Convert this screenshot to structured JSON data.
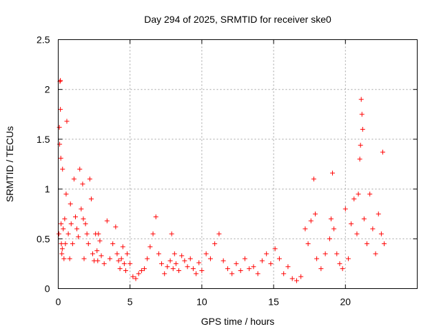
{
  "chart_data": {
    "type": "scatter",
    "title": "Day 294 of 2025, SRMTID for receiver ske0",
    "xlabel": "GPS time / hours",
    "ylabel": "SRMTID / TECUs",
    "xlim": [
      0,
      25
    ],
    "ylim": [
      0,
      2.5
    ],
    "x_ticks": [
      0,
      5,
      10,
      15,
      20
    ],
    "x_tick_labels": [
      "0",
      "5",
      "10",
      "15",
      "20"
    ],
    "y_ticks": [
      0,
      0.5,
      1,
      1.5,
      2,
      2.5
    ],
    "y_tick_labels": [
      "0",
      "0.5",
      "1",
      "1.5",
      "2",
      "2.5"
    ],
    "grid": true,
    "marker": "+",
    "color": "#ff0000",
    "series": [
      {
        "name": "SRMTID",
        "x": [
          0.05,
          0.08,
          0.1,
          0.12,
          0.15,
          0.15,
          0.18,
          0.2,
          0.22,
          0.25,
          0.28,
          0.3,
          0.35,
          0.4,
          0.45,
          0.5,
          0.55,
          0.6,
          0.7,
          0.8,
          0.85,
          0.9,
          1.0,
          1.1,
          1.2,
          1.3,
          1.4,
          1.5,
          1.6,
          1.7,
          1.75,
          1.8,
          1.9,
          2.0,
          2.1,
          2.2,
          2.3,
          2.4,
          2.5,
          2.6,
          2.7,
          2.75,
          2.8,
          2.9,
          3.0,
          3.2,
          3.4,
          3.6,
          3.8,
          4.0,
          4.1,
          4.2,
          4.3,
          4.4,
          4.5,
          4.6,
          4.7,
          4.8,
          5.0,
          5.2,
          5.4,
          5.6,
          5.8,
          6.0,
          6.2,
          6.4,
          6.6,
          6.8,
          7.0,
          7.2,
          7.4,
          7.6,
          7.8,
          7.9,
          8.0,
          8.1,
          8.2,
          8.4,
          8.6,
          8.8,
          9.0,
          9.2,
          9.4,
          9.6,
          9.8,
          10.0,
          10.3,
          10.6,
          10.9,
          11.2,
          11.5,
          11.8,
          12.1,
          12.4,
          12.7,
          13.0,
          13.3,
          13.6,
          13.9,
          14.2,
          14.5,
          14.8,
          15.1,
          15.4,
          15.7,
          16.0,
          16.3,
          16.6,
          16.9,
          17.2,
          17.4,
          17.6,
          17.8,
          17.9,
          18.0,
          18.3,
          18.6,
          18.9,
          19.0,
          19.1,
          19.2,
          19.4,
          19.6,
          19.8,
          20.0,
          20.2,
          20.4,
          20.6,
          20.8,
          20.9,
          21.0,
          21.05,
          21.1,
          21.15,
          21.2,
          21.3,
          21.5,
          21.7,
          21.9,
          22.1,
          22.3,
          22.5,
          22.6,
          22.7
        ],
        "y": [
          0.55,
          1.62,
          1.45,
          2.08,
          2.09,
          1.8,
          1.31,
          0.65,
          0.45,
          0.35,
          0.4,
          1.2,
          0.6,
          0.3,
          0.7,
          0.45,
          0.95,
          1.68,
          0.55,
          0.3,
          0.85,
          0.65,
          0.45,
          1.1,
          0.72,
          0.6,
          0.52,
          1.2,
          0.8,
          1.05,
          0.7,
          0.3,
          0.65,
          0.55,
          0.45,
          1.1,
          0.9,
          0.35,
          0.28,
          0.55,
          0.38,
          0.28,
          0.55,
          0.48,
          0.33,
          0.25,
          0.68,
          0.3,
          0.45,
          0.62,
          0.35,
          0.28,
          0.2,
          0.3,
          0.42,
          0.25,
          0.18,
          0.35,
          0.25,
          0.12,
          0.1,
          0.15,
          0.18,
          0.2,
          0.3,
          0.42,
          0.55,
          0.72,
          0.35,
          0.25,
          0.15,
          0.22,
          0.28,
          0.55,
          0.2,
          0.35,
          0.25,
          0.18,
          0.33,
          0.28,
          0.22,
          0.3,
          0.2,
          0.15,
          0.26,
          0.18,
          0.35,
          0.3,
          0.45,
          0.55,
          0.28,
          0.2,
          0.15,
          0.25,
          0.18,
          0.3,
          0.2,
          0.22,
          0.15,
          0.28,
          0.35,
          0.25,
          0.4,
          0.3,
          0.15,
          0.22,
          0.1,
          0.08,
          0.12,
          0.6,
          0.45,
          0.68,
          1.1,
          0.75,
          0.3,
          0.2,
          0.35,
          0.5,
          0.7,
          1.16,
          0.6,
          0.35,
          0.25,
          0.2,
          0.8,
          0.3,
          0.65,
          0.9,
          0.55,
          0.95,
          1.3,
          1.44,
          1.9,
          1.75,
          1.6,
          0.7,
          0.45,
          0.95,
          0.6,
          0.35,
          0.75,
          0.55,
          1.37,
          0.45
        ]
      }
    ]
  }
}
